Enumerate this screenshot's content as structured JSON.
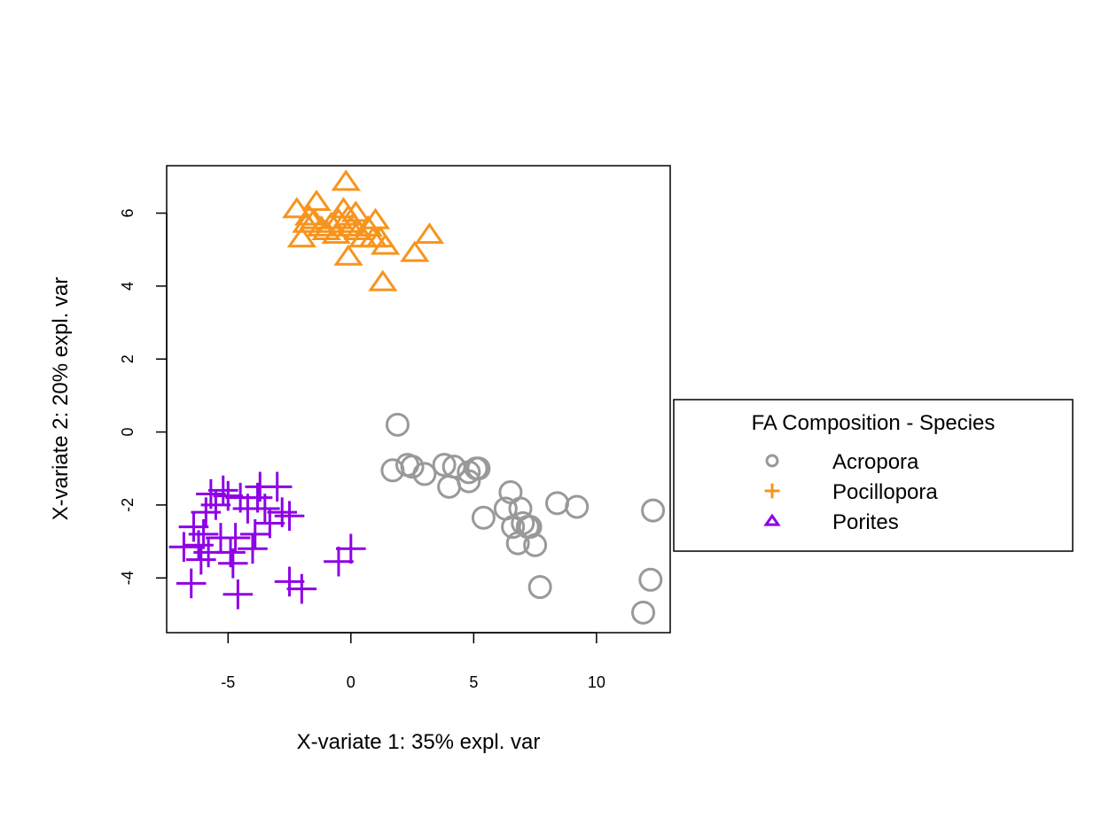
{
  "chart_data": {
    "type": "scatter",
    "xlabel": "X-variate 1: 35% expl. var",
    "ylabel": "X-variate 2: 20% expl. var",
    "xlim": [
      -7.5,
      13
    ],
    "ylim": [
      -5.5,
      7.3
    ],
    "x_ticks": [
      -5,
      0,
      5,
      10
    ],
    "y_ticks": [
      -4,
      -2,
      0,
      2,
      4,
      6
    ],
    "grid": false,
    "legend": {
      "title": "FA Composition - Species",
      "placement": "right",
      "entries": [
        "Acropora",
        "Pocillopora",
        "Porites"
      ]
    },
    "series": [
      {
        "name": "Acropora",
        "marker": "circle",
        "color": "#999999",
        "points": [
          [
            1.9,
            0.2
          ],
          [
            1.7,
            -1.05
          ],
          [
            2.3,
            -0.9
          ],
          [
            2.5,
            -0.95
          ],
          [
            3.0,
            -1.15
          ],
          [
            3.8,
            -0.9
          ],
          [
            4.0,
            -1.5
          ],
          [
            4.2,
            -0.95
          ],
          [
            4.8,
            -1.1
          ],
          [
            4.8,
            -1.35
          ],
          [
            5.1,
            -1.0
          ],
          [
            5.2,
            -1.0
          ],
          [
            5.4,
            -2.35
          ],
          [
            6.3,
            -2.1
          ],
          [
            6.5,
            -1.65
          ],
          [
            6.6,
            -2.6
          ],
          [
            6.8,
            -3.05
          ],
          [
            6.9,
            -2.1
          ],
          [
            7.0,
            -2.5
          ],
          [
            7.2,
            -2.6
          ],
          [
            7.3,
            -2.6
          ],
          [
            7.5,
            -3.1
          ],
          [
            7.7,
            -4.25
          ],
          [
            8.4,
            -1.95
          ],
          [
            9.2,
            -2.05
          ],
          [
            11.9,
            -4.95
          ],
          [
            12.2,
            -4.05
          ],
          [
            12.3,
            -2.15
          ]
        ]
      },
      {
        "name": "Pocillopora",
        "marker": "triangle",
        "color": "#F7941D",
        "points": [
          [
            -2.2,
            6.1
          ],
          [
            -2.0,
            5.3
          ],
          [
            -1.8,
            5.7
          ],
          [
            -1.7,
            5.9
          ],
          [
            -1.5,
            5.8
          ],
          [
            -1.4,
            6.3
          ],
          [
            -1.2,
            5.6
          ],
          [
            -1.0,
            5.5
          ],
          [
            -0.8,
            5.7
          ],
          [
            -0.6,
            5.4
          ],
          [
            -0.5,
            5.8
          ],
          [
            -0.3,
            6.1
          ],
          [
            -0.2,
            6.85
          ],
          [
            -0.1,
            5.9
          ],
          [
            0.0,
            5.6
          ],
          [
            0.1,
            5.7
          ],
          [
            0.2,
            6.0
          ],
          [
            0.3,
            5.5
          ],
          [
            0.5,
            5.3
          ],
          [
            0.7,
            5.6
          ],
          [
            0.9,
            5.3
          ],
          [
            1.0,
            5.8
          ],
          [
            1.2,
            5.3
          ],
          [
            1.4,
            5.1
          ],
          [
            1.3,
            4.1
          ],
          [
            2.6,
            4.9
          ],
          [
            3.2,
            5.4
          ],
          [
            -0.1,
            4.8
          ]
        ]
      },
      {
        "name": "Porites",
        "marker": "plus",
        "color": "#8E00E6",
        "points": [
          [
            -6.8,
            -3.15
          ],
          [
            -6.5,
            -4.15
          ],
          [
            -6.4,
            -2.6
          ],
          [
            -6.2,
            -3.1
          ],
          [
            -6.1,
            -3.5
          ],
          [
            -6.0,
            -2.8
          ],
          [
            -5.9,
            -2.2
          ],
          [
            -5.8,
            -3.3
          ],
          [
            -5.7,
            -1.7
          ],
          [
            -5.5,
            -2.0
          ],
          [
            -5.3,
            -2.9
          ],
          [
            -5.2,
            -1.6
          ],
          [
            -5.0,
            -1.75
          ],
          [
            -4.9,
            -3.3
          ],
          [
            -4.8,
            -3.6
          ],
          [
            -4.7,
            -2.9
          ],
          [
            -4.6,
            -4.45
          ],
          [
            -4.5,
            -1.8
          ],
          [
            -4.2,
            -2.1
          ],
          [
            -4.0,
            -3.2
          ],
          [
            -3.9,
            -2.8
          ],
          [
            -3.8,
            -1.8
          ],
          [
            -3.7,
            -1.5
          ],
          [
            -3.5,
            -2.1
          ],
          [
            -3.3,
            -2.5
          ],
          [
            -3.0,
            -1.5
          ],
          [
            -2.8,
            -2.2
          ],
          [
            -2.5,
            -2.3
          ],
          [
            -2.5,
            -4.1
          ],
          [
            -2.0,
            -4.3
          ],
          [
            -0.5,
            -3.55
          ],
          [
            0.0,
            -3.2
          ]
        ]
      }
    ]
  }
}
